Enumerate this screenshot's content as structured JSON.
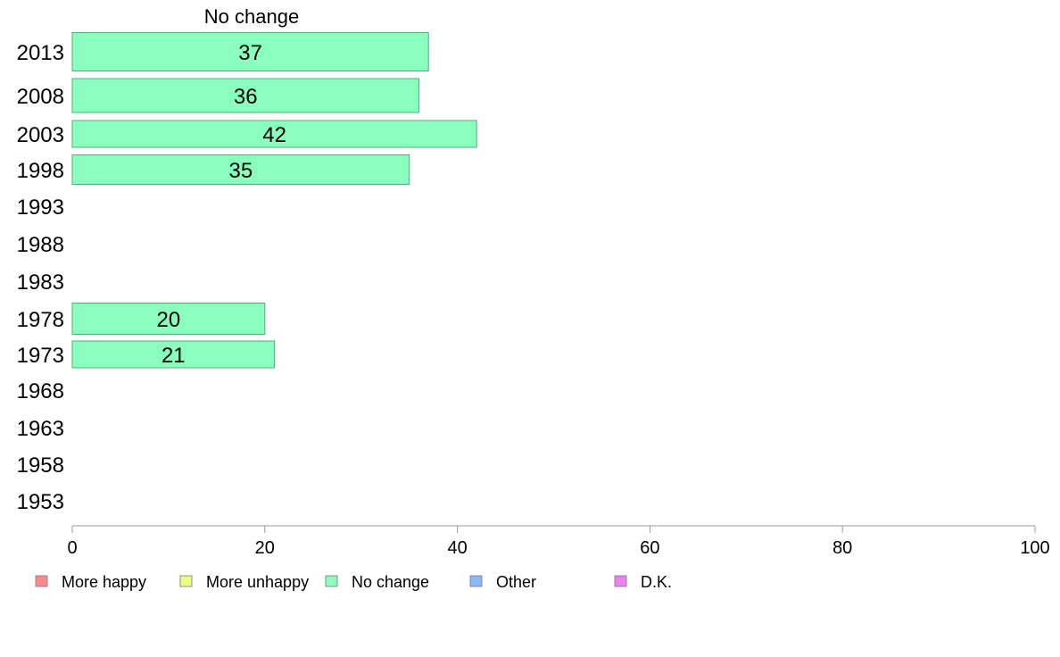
{
  "chart_data": {
    "type": "bar",
    "orientation": "horizontal",
    "series_title": "No change",
    "categories": [
      "2013",
      "2008",
      "2003",
      "1998",
      "1993",
      "1988",
      "1983",
      "1978",
      "1973",
      "1968",
      "1963",
      "1958",
      "1953"
    ],
    "series": [
      {
        "name": "No change",
        "values": [
          37,
          36,
          42,
          35,
          null,
          null,
          null,
          20,
          21,
          null,
          null,
          null,
          null
        ]
      }
    ],
    "xlim": [
      0,
      100
    ],
    "xticks": [
      0,
      20,
      40,
      60,
      80,
      100
    ],
    "legend": [
      {
        "label": "More happy",
        "color": "#ff8a8a"
      },
      {
        "label": "More unhappy",
        "color": "#eeff80"
      },
      {
        "label": "No change",
        "color": "#8affbd"
      },
      {
        "label": "Other",
        "color": "#8ab8ff"
      },
      {
        "label": "D.K.",
        "color": "#f080f5"
      }
    ],
    "legend_position": "bottom",
    "grid": false,
    "bar_color": "#8affbd",
    "bar_border_color": "#4caf78"
  }
}
